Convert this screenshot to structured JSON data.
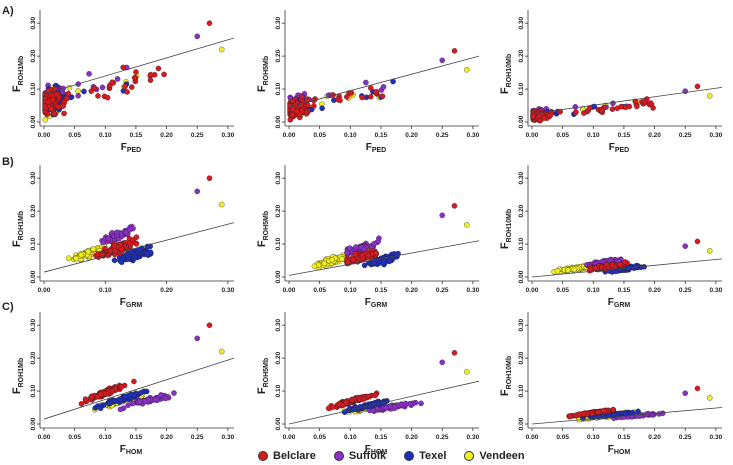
{
  "figure": {
    "row_labels": [
      "A)",
      "B)",
      "C)"
    ],
    "legend": [
      {
        "name": "Belclare",
        "color": "#d71920"
      },
      {
        "name": "Suffolk",
        "color": "#8b2fc9"
      },
      {
        "name": "Texel",
        "color": "#1f2fb8"
      },
      {
        "name": "Vendeen",
        "color": "#f3ef1e"
      }
    ]
  },
  "chart_data": [
    {
      "id": "A1",
      "type": "scatter",
      "row": "A)",
      "ylabel": "F",
      "ylabel_sub": "ROH1Mb",
      "xlabel": "F",
      "xlabel_sub": "PED",
      "xlim": [
        0,
        0.31
      ],
      "ylim": [
        0,
        0.34
      ],
      "xticks": [
        "0.00",
        "0.05",
        "0.10",
        "0.15",
        "0.20",
        "0.25",
        "0.30"
      ],
      "yticks": [
        "0.00",
        "0.10",
        "0.20",
        "0.30"
      ],
      "trend": {
        "x0": 0,
        "y0": 0.085,
        "x1": 0.31,
        "y1": 0.255
      }
    },
    {
      "id": "A2",
      "type": "scatter",
      "row": "A)",
      "ylabel": "F",
      "ylabel_sub": "ROH5Mb",
      "xlabel": "F",
      "xlabel_sub": "PED",
      "xlim": [
        0,
        0.31
      ],
      "ylim": [
        0,
        0.34
      ],
      "xticks": [
        "0.00",
        "0.05",
        "0.10",
        "0.15",
        "0.20",
        "0.25",
        "0.30"
      ],
      "yticks": [
        "0.00",
        "0.10",
        "0.20",
        "0.30"
      ],
      "trend": {
        "x0": 0,
        "y0": 0.045,
        "x1": 0.31,
        "y1": 0.2
      }
    },
    {
      "id": "A3",
      "type": "scatter",
      "row": "A)",
      "ylabel": "F",
      "ylabel_sub": "ROH10Mb",
      "xlabel": "F",
      "xlabel_sub": "PED",
      "xlim": [
        0,
        0.31
      ],
      "ylim": [
        0,
        0.34
      ],
      "xticks": [
        "0.00",
        "0.05",
        "0.10",
        "0.15",
        "0.20",
        "0.25",
        "0.30"
      ],
      "yticks": [
        "0.00",
        "0.10",
        "0.20",
        "0.30"
      ],
      "trend": {
        "x0": 0,
        "y0": 0.025,
        "x1": 0.31,
        "y1": 0.105
      }
    },
    {
      "id": "B1",
      "type": "scatter",
      "row": "B)",
      "ylabel": "F",
      "ylabel_sub": "ROH1Mb",
      "xlabel": "F",
      "xlabel_sub": "GRM",
      "xlim": [
        0,
        0.31
      ],
      "ylim": [
        0,
        0.34
      ],
      "xticks": [
        "0.00",
        "0.10",
        "0.20",
        "0.30"
      ],
      "yticks": [
        "0.00",
        "0.10",
        "0.20",
        "0.30"
      ],
      "trend": {
        "x0": 0,
        "y0": 0.015,
        "x1": 0.31,
        "y1": 0.165
      }
    },
    {
      "id": "B2",
      "type": "scatter",
      "row": "B)",
      "ylabel": "F",
      "ylabel_sub": "ROH5Mb",
      "xlabel": "F",
      "xlabel_sub": "GRM",
      "xlim": [
        0,
        0.31
      ],
      "ylim": [
        0,
        0.34
      ],
      "xticks": [
        "0.00",
        "0.05",
        "0.10",
        "0.15",
        "0.20",
        "0.25",
        "0.30"
      ],
      "yticks": [
        "0.00",
        "0.10",
        "0.20",
        "0.30"
      ],
      "trend": {
        "x0": 0,
        "y0": 0.005,
        "x1": 0.31,
        "y1": 0.11
      }
    },
    {
      "id": "B3",
      "type": "scatter",
      "row": "B)",
      "ylabel": "F",
      "ylabel_sub": "ROH10Mb",
      "xlabel": "F",
      "xlabel_sub": "GRM",
      "xlim": [
        0,
        0.31
      ],
      "ylim": [
        0,
        0.34
      ],
      "xticks": [
        "0.00",
        "0.05",
        "0.10",
        "0.15",
        "0.20",
        "0.25",
        "0.30"
      ],
      "yticks": [
        "0.00",
        "0.10",
        "0.20",
        "0.30"
      ],
      "trend": {
        "x0": 0,
        "y0": 0.0,
        "x1": 0.31,
        "y1": 0.055
      }
    },
    {
      "id": "C1",
      "type": "scatter",
      "row": "C)",
      "ylabel": "F",
      "ylabel_sub": "ROH1Mb",
      "xlabel": "F",
      "xlabel_sub": "HOM",
      "xlim": [
        0,
        0.31
      ],
      "ylim": [
        0,
        0.34
      ],
      "xticks": [
        "0.00",
        "0.05",
        "0.10",
        "0.15",
        "0.20",
        "0.25",
        "0.30"
      ],
      "yticks": [
        "0.00",
        "0.10",
        "0.20",
        "0.30"
      ],
      "trend": {
        "x0": 0,
        "y0": 0.015,
        "x1": 0.31,
        "y1": 0.2
      }
    },
    {
      "id": "C2",
      "type": "scatter",
      "row": "C)",
      "ylabel": "F",
      "ylabel_sub": "ROH5Mb",
      "xlabel": "F",
      "xlabel_sub": "HOM",
      "xlim": [
        0,
        0.31
      ],
      "ylim": [
        0,
        0.34
      ],
      "xticks": [
        "0.00",
        "0.05",
        "0.10",
        "0.15",
        "0.20",
        "0.25",
        "0.30"
      ],
      "yticks": [
        "0.00",
        "0.10",
        "0.20",
        "0.30"
      ],
      "trend": {
        "x0": 0,
        "y0": 0.0,
        "x1": 0.31,
        "y1": 0.13
      }
    },
    {
      "id": "C3",
      "type": "scatter",
      "row": "C)",
      "ylabel": "F",
      "ylabel_sub": "ROH10Mb",
      "xlabel": "F",
      "xlabel_sub": "HOM",
      "xlim": [
        0,
        0.31
      ],
      "ylim": [
        0,
        0.34
      ],
      "xticks": [
        "0.00",
        "0.05",
        "0.10",
        "0.15",
        "0.20",
        "0.25",
        "0.30"
      ],
      "yticks": [
        "0.00",
        "0.10",
        "0.20",
        "0.30"
      ],
      "trend": {
        "x0": 0,
        "y0": 0.0,
        "x1": 0.31,
        "y1": 0.05
      }
    }
  ]
}
